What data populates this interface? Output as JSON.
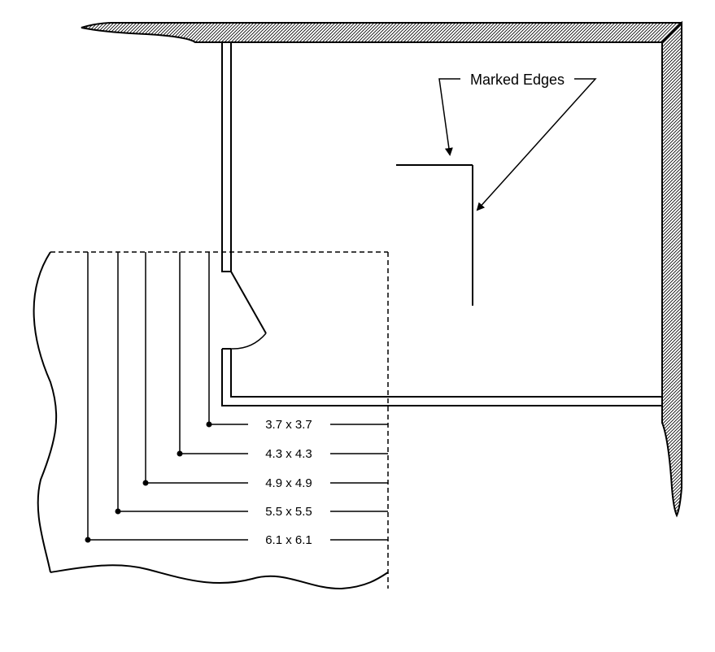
{
  "callout": {
    "label": "Marked Edges"
  },
  "dimensions": [
    {
      "label": "3.7 x 3.7"
    },
    {
      "label": "4.3 x 4.3"
    },
    {
      "label": "4.9 x 4.9"
    },
    {
      "label": "5.5 x 5.5"
    },
    {
      "label": "6.1 x 6.1"
    }
  ],
  "colors": {
    "line": "#000000",
    "background": "#ffffff"
  }
}
